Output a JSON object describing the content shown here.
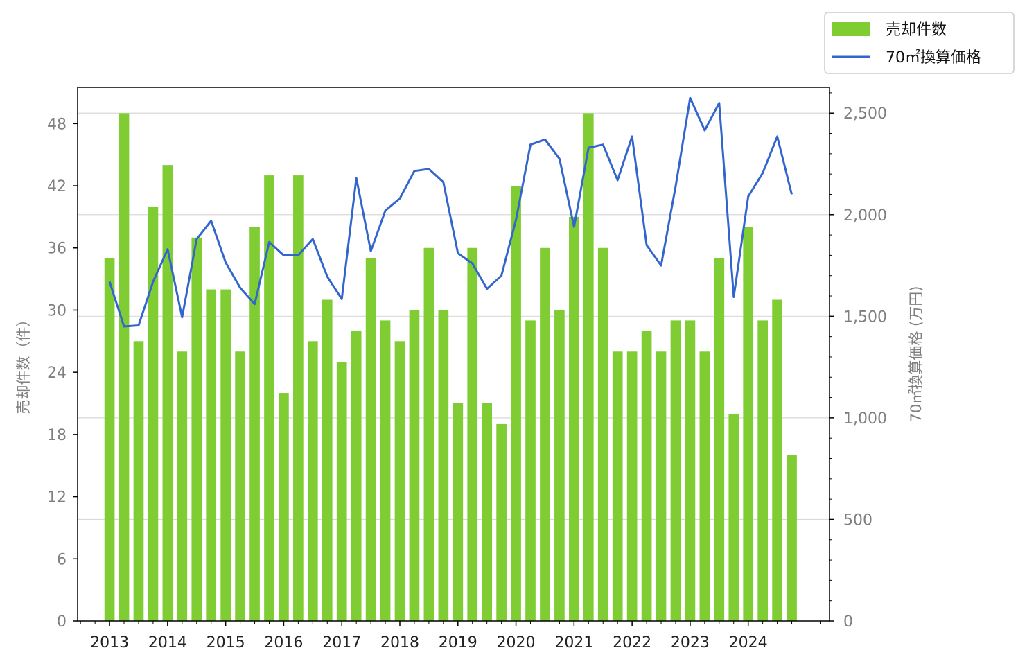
{
  "chart_data": {
    "type": "bar",
    "x_tick_labels": [
      "2013",
      "2014",
      "2015",
      "2016",
      "2017",
      "2018",
      "2019",
      "2020",
      "2021",
      "2022",
      "2023",
      "2024"
    ],
    "y_left": {
      "label": "売却件数（件）",
      "ticks": [
        0,
        6,
        12,
        18,
        24,
        30,
        36,
        42,
        48
      ],
      "ylim": [
        0,
        51.5
      ]
    },
    "y_right": {
      "label": "70㎡換算価格 (万円)",
      "ticks": [
        0,
        500,
        1000,
        1500,
        2000,
        2500
      ],
      "tick_labels": [
        "0",
        "500",
        "1,000",
        "1,500",
        "2,000",
        "2,500"
      ],
      "ylim": [
        0,
        2627
      ]
    },
    "grid": "horizontal, right axis",
    "legend": {
      "position": "top-right",
      "bar_label": "売却件数",
      "line_label": "70㎡換算価格"
    },
    "bar_color": "#7fcc33",
    "line_color": "#3366cc",
    "x_start": 2013.0,
    "x_step": 0.25,
    "xlim": [
      2012.45,
      2025.4
    ],
    "series": [
      {
        "name": "売却件数",
        "type": "bar",
        "values": [
          35,
          49,
          27,
          40,
          44,
          26,
          37,
          32,
          32,
          26,
          38,
          43,
          22,
          43,
          27,
          31,
          25,
          28,
          35,
          29,
          27,
          30,
          36,
          30,
          21,
          36,
          21,
          19,
          42,
          29,
          36,
          30,
          39,
          49,
          36,
          26,
          26,
          28,
          26,
          29,
          29,
          26,
          35,
          20,
          38,
          29,
          31,
          16
        ]
      },
      {
        "name": "70㎡換算価格",
        "type": "line",
        "values": [
          1670,
          1450,
          1455,
          1670,
          1830,
          1495,
          1880,
          1970,
          1765,
          1640,
          1560,
          1865,
          1800,
          1800,
          1880,
          1695,
          1585,
          2180,
          1820,
          2020,
          2080,
          2215,
          2225,
          2160,
          1810,
          1760,
          1635,
          1700,
          1975,
          2345,
          2370,
          2275,
          1940,
          2330,
          2345,
          2170,
          2385,
          1850,
          1750,
          2140,
          2575,
          2415,
          2550,
          1595,
          2090,
          2205,
          2385,
          2100
        ]
      }
    ]
  }
}
